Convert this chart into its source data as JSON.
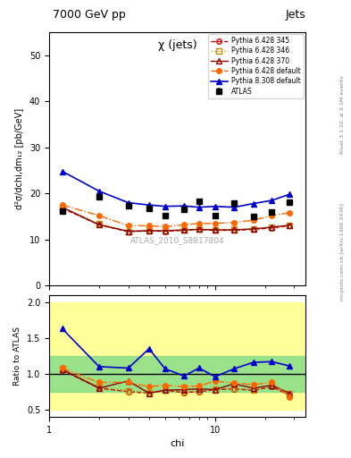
{
  "title_top": "7000 GeV pp",
  "title_right": "Jets",
  "plot_title": "χ (jets)",
  "ylabel_main": "d²σ/dchi,dm₁₂ [pb/GeV]",
  "ylabel_ratio": "Ratio to ATLAS",
  "xlabel": "chi",
  "watermark": "ATLAS_2010_S8817804",
  "rivet_text": "Rivet 3.1.10, ≥ 3.1M events",
  "arxiv_text": "mcplots.cern.ch [arXiv:1306.3436]",
  "chi_x": [
    1.2,
    2.0,
    3.0,
    4.0,
    5.0,
    6.5,
    8.0,
    10.0,
    13.0,
    17.0,
    22.0,
    28.0
  ],
  "atlas_y": [
    16.2,
    19.2,
    17.3,
    16.8,
    15.2,
    16.5,
    18.3,
    15.2,
    18.0,
    15.0,
    16.0,
    18.2
  ],
  "atlas_yerr": [
    0.5,
    0.5,
    0.5,
    0.5,
    0.5,
    0.5,
    0.5,
    0.5,
    0.5,
    0.5,
    0.5,
    0.5
  ],
  "py6_345_y": [
    16.8,
    13.2,
    11.7,
    11.9,
    11.8,
    12.0,
    12.2,
    12.0,
    12.0,
    12.2,
    12.5,
    13.0
  ],
  "py6_346_y": [
    17.0,
    13.4,
    11.8,
    12.0,
    11.9,
    12.1,
    12.3,
    12.1,
    12.2,
    12.3,
    12.6,
    13.1
  ],
  "py6_370_y": [
    17.0,
    13.2,
    11.8,
    11.9,
    11.9,
    12.1,
    12.2,
    12.1,
    12.1,
    12.3,
    12.7,
    13.1
  ],
  "py6_def_y": [
    17.5,
    15.2,
    13.0,
    13.0,
    12.8,
    13.2,
    13.5,
    13.5,
    13.7,
    14.2,
    15.2,
    15.8
  ],
  "py8_def_y": [
    24.8,
    20.5,
    18.0,
    17.5,
    17.2,
    17.3,
    17.0,
    17.2,
    17.0,
    17.8,
    18.5,
    19.8
  ],
  "py6_345_ratio": [
    1.05,
    0.8,
    0.75,
    0.73,
    0.77,
    0.74,
    0.75,
    0.78,
    0.79,
    0.77,
    0.82,
    0.7
  ],
  "py6_346_ratio": [
    1.07,
    0.82,
    0.76,
    0.74,
    0.78,
    0.75,
    0.76,
    0.79,
    0.8,
    0.78,
    0.83,
    0.72
  ],
  "py6_370_ratio": [
    1.06,
    0.8,
    0.9,
    0.73,
    0.77,
    0.78,
    0.79,
    0.78,
    0.86,
    0.8,
    0.84,
    0.73
  ],
  "py6_def_ratio": [
    1.08,
    0.88,
    0.88,
    0.82,
    0.84,
    0.82,
    0.83,
    0.9,
    0.87,
    0.85,
    0.88,
    0.68
  ],
  "py8_def_ratio": [
    1.63,
    1.1,
    1.08,
    1.35,
    1.07,
    0.97,
    1.08,
    0.96,
    1.07,
    1.16,
    1.17,
    1.11
  ],
  "band_yellow_lo": 0.5,
  "band_yellow_hi": 2.0,
  "band_green_lo": 0.75,
  "band_green_hi": 1.25,
  "color_atlas": "#000000",
  "color_py6_345": "#cc0000",
  "color_py6_346": "#cc8800",
  "color_py6_370": "#880000",
  "color_py6_def": "#ff6600",
  "color_py8_def": "#0000cc",
  "color_yellow": "#ffff88",
  "color_green": "#88dd88",
  "ylim_main": [
    0,
    55
  ],
  "ylim_ratio": [
    0.4,
    2.1
  ],
  "yticks_main": [
    0,
    10,
    20,
    30,
    40,
    50
  ],
  "yticks_ratio": [
    0.5,
    1.0,
    1.5,
    2.0
  ]
}
